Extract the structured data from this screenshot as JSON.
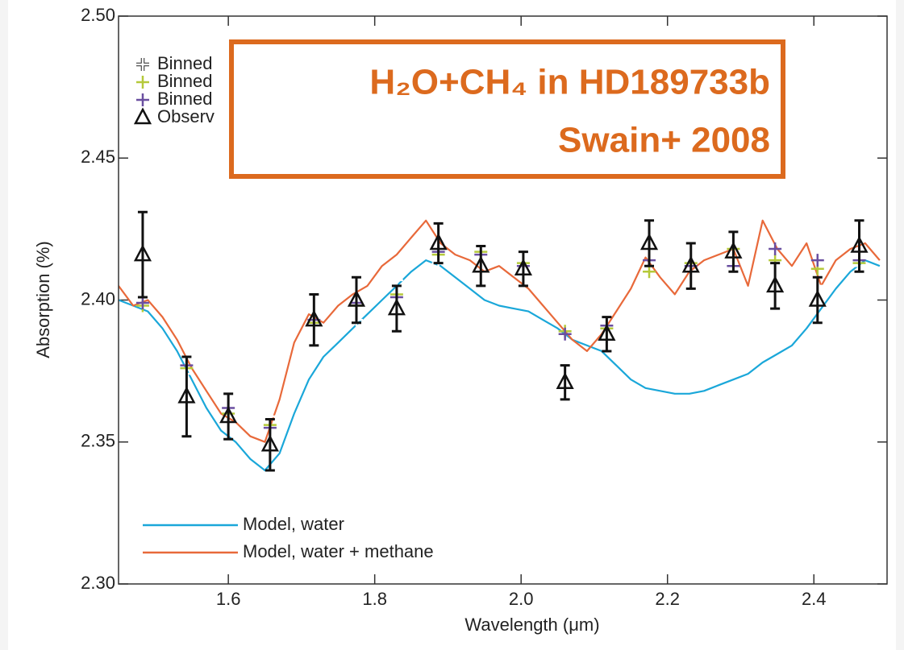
{
  "chart_data": {
    "type": "line",
    "annotation": [
      "H₂O+CH₄ in HD189733b",
      "Swain+ 2008"
    ],
    "xlabel": "Wavelength (μm)",
    "ylabel": "Absorption (%)",
    "xlim": [
      1.45,
      2.5
    ],
    "ylim": [
      2.3,
      2.5
    ],
    "xticks": [
      1.6,
      1.8,
      {
        "value": 2,
        "label": "2.0"
      },
      2.2,
      2.4
    ],
    "yticks": [
      {
        "value": 2.3,
        "label": "2.30"
      },
      2.35,
      {
        "value": 2.4,
        "label": "2.40"
      },
      2.45,
      {
        "value": 2.5,
        "label": "2.50"
      }
    ],
    "marker_legend": "upper left",
    "line_legend": "lower left",
    "series": [
      {
        "name": "Binned",
        "type": "scatter",
        "marker": "plus",
        "color": "#ffffff",
        "x": [
          1.483,
          1.543,
          1.6,
          1.657,
          1.717,
          1.775,
          1.83,
          1.887,
          1.945,
          2.003,
          2.06,
          2.117,
          2.175,
          2.232,
          2.29,
          2.347,
          2.405,
          2.462
        ],
        "values": [
          2.394,
          2.374,
          2.356,
          2.359,
          2.389,
          2.393,
          2.407,
          2.413,
          2.405,
          2.402,
          2.381,
          2.391,
          2.404,
          2.399,
          2.411,
          2.41,
          2.405,
          2.412
        ]
      },
      {
        "name": "Binned",
        "type": "scatter",
        "marker": "plus",
        "color": "#b5c93a",
        "x": [
          1.483,
          1.543,
          1.6,
          1.657,
          1.717,
          1.775,
          1.83,
          1.887,
          1.945,
          2.003,
          2.06,
          2.117,
          2.175,
          2.232,
          2.29,
          2.347,
          2.405,
          2.462
        ],
        "values": [
          2.398,
          2.376,
          2.36,
          2.356,
          2.392,
          2.398,
          2.402,
          2.416,
          2.417,
          2.413,
          2.389,
          2.39,
          2.41,
          2.413,
          2.418,
          2.414,
          2.411,
          2.413
        ]
      },
      {
        "name": "Binned",
        "type": "scatter",
        "marker": "plus",
        "color": "#6a4fa0",
        "x": [
          1.483,
          1.543,
          1.6,
          1.657,
          1.717,
          1.775,
          1.83,
          1.887,
          1.945,
          2.003,
          2.06,
          2.117,
          2.175,
          2.232,
          2.29,
          2.347,
          2.405,
          2.462
        ],
        "values": [
          2.399,
          2.377,
          2.362,
          2.355,
          2.393,
          2.399,
          2.401,
          2.417,
          2.416,
          2.412,
          2.388,
          2.391,
          2.414,
          2.412,
          2.412,
          2.418,
          2.414,
          2.414
        ]
      },
      {
        "name": "Observ",
        "type": "errorbar",
        "marker": "triangle",
        "color": "#111111",
        "x": [
          1.483,
          1.543,
          1.6,
          1.657,
          1.717,
          1.775,
          1.83,
          1.887,
          1.945,
          2.003,
          2.06,
          2.117,
          2.175,
          2.232,
          2.29,
          2.347,
          2.405,
          2.462
        ],
        "values": [
          2.416,
          2.366,
          2.359,
          2.349,
          2.393,
          2.4,
          2.397,
          2.42,
          2.412,
          2.411,
          2.371,
          2.388,
          2.42,
          2.412,
          2.417,
          2.405,
          2.4,
          2.419
        ],
        "errors": [
          0.015,
          0.014,
          0.008,
          0.009,
          0.009,
          0.008,
          0.008,
          0.007,
          0.007,
          0.006,
          0.006,
          0.006,
          0.008,
          0.008,
          0.007,
          0.008,
          0.008,
          0.009
        ]
      },
      {
        "name": "Model, water",
        "type": "line",
        "color": "#1aa7d9",
        "x": [
          1.45,
          1.47,
          1.49,
          1.51,
          1.53,
          1.55,
          1.57,
          1.59,
          1.61,
          1.63,
          1.65,
          1.67,
          1.69,
          1.71,
          1.73,
          1.75,
          1.77,
          1.79,
          1.81,
          1.83,
          1.85,
          1.87,
          1.89,
          1.91,
          1.93,
          1.95,
          1.97,
          1.99,
          2.01,
          2.03,
          2.05,
          2.07,
          2.09,
          2.11,
          2.13,
          2.15,
          2.17,
          2.19,
          2.21,
          2.23,
          2.25,
          2.27,
          2.29,
          2.31,
          2.33,
          2.35,
          2.37,
          2.39,
          2.41,
          2.43,
          2.45,
          2.47,
          2.49
        ],
        "values": [
          2.4,
          2.398,
          2.396,
          2.39,
          2.382,
          2.372,
          2.362,
          2.354,
          2.35,
          2.344,
          2.34,
          2.346,
          2.36,
          2.372,
          2.38,
          2.385,
          2.39,
          2.395,
          2.4,
          2.405,
          2.41,
          2.414,
          2.412,
          2.408,
          2.404,
          2.4,
          2.398,
          2.397,
          2.396,
          2.393,
          2.39,
          2.386,
          2.384,
          2.382,
          2.377,
          2.372,
          2.369,
          2.368,
          2.367,
          2.367,
          2.368,
          2.37,
          2.372,
          2.374,
          2.378,
          2.381,
          2.384,
          2.39,
          2.397,
          2.404,
          2.41,
          2.414,
          2.412
        ]
      },
      {
        "name": "Model, water + methane",
        "type": "line",
        "color": "#e8693a",
        "x": [
          1.45,
          1.47,
          1.49,
          1.51,
          1.53,
          1.55,
          1.57,
          1.59,
          1.61,
          1.63,
          1.65,
          1.67,
          1.69,
          1.71,
          1.73,
          1.75,
          1.77,
          1.79,
          1.81,
          1.83,
          1.85,
          1.87,
          1.89,
          1.91,
          1.93,
          1.95,
          1.97,
          1.99,
          2.01,
          2.03,
          2.05,
          2.07,
          2.09,
          2.11,
          2.13,
          2.15,
          2.17,
          2.19,
          2.21,
          2.23,
          2.25,
          2.27,
          2.29,
          2.31,
          2.33,
          2.35,
          2.37,
          2.39,
          2.41,
          2.43,
          2.45,
          2.47,
          2.49
        ],
        "values": [
          2.405,
          2.398,
          2.4,
          2.394,
          2.386,
          2.376,
          2.368,
          2.36,
          2.357,
          2.352,
          2.35,
          2.365,
          2.385,
          2.395,
          2.392,
          2.398,
          2.402,
          2.405,
          2.412,
          2.416,
          2.422,
          2.428,
          2.42,
          2.416,
          2.414,
          2.41,
          2.412,
          2.408,
          2.404,
          2.398,
          2.392,
          2.386,
          2.382,
          2.388,
          2.396,
          2.404,
          2.415,
          2.408,
          2.402,
          2.41,
          2.414,
          2.416,
          2.418,
          2.405,
          2.428,
          2.418,
          2.412,
          2.42,
          2.405,
          2.414,
          2.418,
          2.42,
          2.414
        ]
      }
    ]
  }
}
